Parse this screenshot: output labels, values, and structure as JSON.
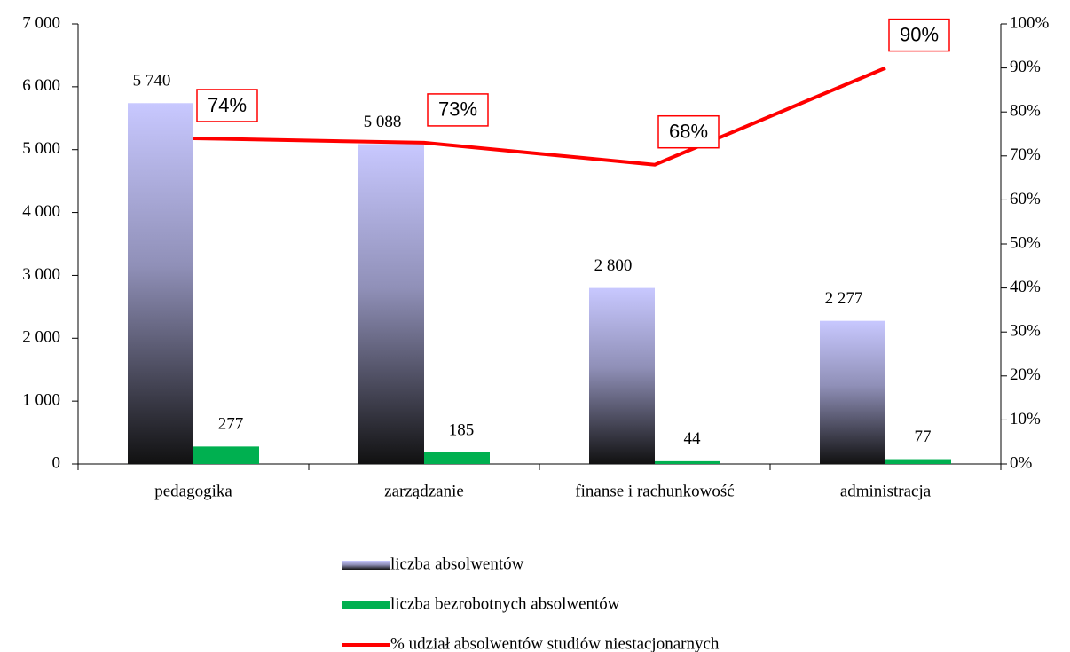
{
  "chart_data": {
    "type": "bar",
    "categories": [
      "pedagogika",
      "zarządzanie",
      "finanse i rachunkowość",
      "administracja"
    ],
    "series": [
      {
        "name": "liczba absolwentów",
        "color": "#c8c8ff",
        "values": [
          5740,
          5088,
          2800,
          2277
        ],
        "value_labels": [
          "5 740",
          "5 088",
          "2 800",
          "2 277"
        ]
      },
      {
        "name": "liczba bezrobotnych absolwentów",
        "color": "#00b050",
        "values": [
          277,
          185,
          44,
          77
        ]
      },
      {
        "name": "% udział absolwentów studiów niestacjonarnych",
        "type": "line",
        "axis": "y2",
        "color": "#ff0000",
        "values": [
          74,
          73,
          68,
          90
        ],
        "value_labels": [
          "74%",
          "73%",
          "68%",
          "90%"
        ]
      }
    ],
    "ylim": [
      0,
      7000
    ],
    "yticks": [
      {
        "value": 0,
        "label": "0"
      },
      {
        "value": 1000,
        "label": "1 000"
      },
      {
        "value": 2000,
        "label": "2 000"
      },
      {
        "value": 3000,
        "label": "3 000"
      },
      {
        "value": 4000,
        "label": "4 000"
      },
      {
        "value": 5000,
        "label": "5 000"
      },
      {
        "value": 6000,
        "label": "6 000"
      },
      {
        "value": 7000,
        "label": "7 000"
      }
    ],
    "y2lim": [
      0,
      100
    ],
    "y2ticks": [
      {
        "value": 0,
        "label": "0%"
      },
      {
        "value": 10,
        "label": "10%"
      },
      {
        "value": 20,
        "label": "20%"
      },
      {
        "value": 30,
        "label": "30%"
      },
      {
        "value": 40,
        "label": "40%"
      },
      {
        "value": 50,
        "label": "50%"
      },
      {
        "value": 60,
        "label": "60%"
      },
      {
        "value": 70,
        "label": "70%"
      },
      {
        "value": 80,
        "label": "80%"
      },
      {
        "value": 90,
        "label": "90%"
      },
      {
        "value": 100,
        "label": "100%"
      }
    ],
    "grid": false,
    "legend": "bottom"
  }
}
